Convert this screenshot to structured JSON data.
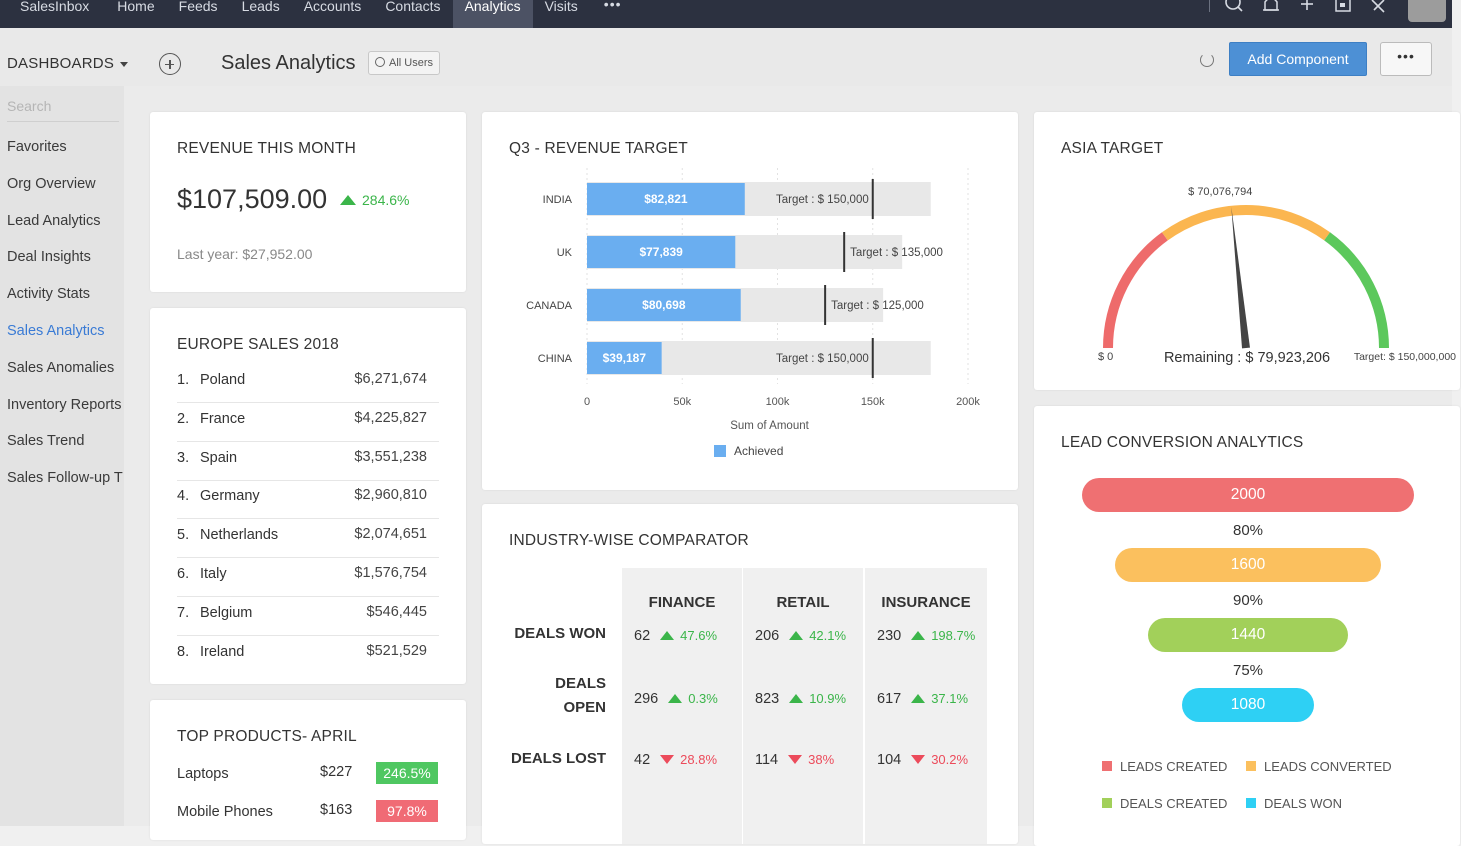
{
  "nav": {
    "brand": "SalesInbox",
    "items": [
      "Home",
      "Feeds",
      "Leads",
      "Accounts",
      "Contacts",
      "Analytics",
      "Visits"
    ],
    "active": "Analytics",
    "more": "•••"
  },
  "subheader": {
    "dashboards_label": "DASHBOARDS",
    "title": "Sales Analytics",
    "scope_label": "All Users",
    "add_component_label": "Add Component",
    "more_label": "•••"
  },
  "sidebar": {
    "search_placeholder": "Search",
    "items": [
      "Favorites",
      "Org Overview",
      "Lead Analytics",
      "Deal Insights",
      "Activity Stats",
      "Sales Analytics",
      "Sales Anomalies",
      "Inventory Reports",
      "Sales Trend",
      "Sales Follow-up T"
    ],
    "active_index": 5
  },
  "revenue": {
    "title": "REVENUE THIS MONTH",
    "value": "$107,509.00",
    "growth": "284.6%",
    "last_year": "Last year: $27,952.00"
  },
  "europe": {
    "title": "EUROPE SALES 2018",
    "rows": [
      {
        "rank": "1.",
        "country": "Poland",
        "value": "$6,271,674"
      },
      {
        "rank": "2.",
        "country": "France",
        "value": "$4,225,827"
      },
      {
        "rank": "3.",
        "country": "Spain",
        "value": "$3,551,238"
      },
      {
        "rank": "4.",
        "country": "Germany",
        "value": "$2,960,810"
      },
      {
        "rank": "5.",
        "country": "Netherlands",
        "value": "$2,074,651"
      },
      {
        "rank": "6.",
        "country": "Italy",
        "value": "$1,576,754"
      },
      {
        "rank": "7.",
        "country": "Belgium",
        "value": "$546,445"
      },
      {
        "rank": "8.",
        "country": "Ireland",
        "value": "$521,529"
      }
    ]
  },
  "products": {
    "title": "TOP PRODUCTS- APRIL",
    "rows": [
      {
        "name": "Laptops",
        "price": "$227",
        "change": "246.5%",
        "trend": "up"
      },
      {
        "name": "Mobile Phones",
        "price": "$163",
        "change": "97.8%",
        "trend": "down"
      }
    ]
  },
  "q3": {
    "title": "Q3 - REVENUE TARGET"
  },
  "chart_data": {
    "type": "bar",
    "orientation": "horizontal",
    "title": "Q3 - REVENUE TARGET",
    "categories": [
      "INDIA",
      "UK",
      "CANADA",
      "CHINA"
    ],
    "series": [
      {
        "name": "Achieved",
        "values": [
          82821,
          77839,
          80698,
          39187
        ],
        "labels": [
          "$82,821",
          "$77,839",
          "$80,698",
          "$39,187"
        ]
      }
    ],
    "targets": [
      150000,
      135000,
      125000,
      150000
    ],
    "target_labels": [
      "Target : $ 150,000",
      "Target : $ 135,000",
      "Target : $ 125,000",
      "Target : $ 150,000"
    ],
    "xlabel": "Sum of Amount",
    "xlim": [
      0,
      200000
    ],
    "xticks": [
      "0",
      "50k",
      "100k",
      "150k",
      "200k"
    ],
    "legend": "bottom",
    "colors": {
      "achieved": "#6aaef0",
      "remaining": "#e8e8e8"
    }
  },
  "industry": {
    "title": "INDUSTRY-WISE COMPARATOR",
    "columns": [
      "FINANCE",
      "RETAIL",
      "INSURANCE"
    ],
    "rows": [
      {
        "label": "DEALS WON",
        "cells": [
          {
            "value": "62",
            "pct": "47.6%",
            "trend": "up"
          },
          {
            "value": "206",
            "pct": "42.1%",
            "trend": "up"
          },
          {
            "value": "230",
            "pct": "198.7%",
            "trend": "up"
          }
        ]
      },
      {
        "label": "DEALS OPEN",
        "cells": [
          {
            "value": "296",
            "pct": "0.3%",
            "trend": "up"
          },
          {
            "value": "823",
            "pct": "10.9%",
            "trend": "up"
          },
          {
            "value": "617",
            "pct": "37.1%",
            "trend": "up"
          }
        ]
      },
      {
        "label": "DEALS LOST",
        "cells": [
          {
            "value": "42",
            "pct": "28.8%",
            "trend": "down"
          },
          {
            "value": "114",
            "pct": "38%",
            "trend": "down"
          },
          {
            "value": "104",
            "pct": "30.2%",
            "trend": "down"
          }
        ]
      }
    ]
  },
  "asia": {
    "title": "ASIA TARGET",
    "current_label": "$ 70,076,794",
    "min_label": "$ 0",
    "max_label": "Target: $ 150,000,000",
    "value_fraction": 0.467,
    "remaining": "Remaining : $ 79,923,206",
    "colors": {
      "low": "#ee6b6b",
      "mid": "#fbb650",
      "high": "#5cc85c"
    }
  },
  "leads": {
    "title": "LEAD CONVERSION ANALYTICS",
    "stages": [
      {
        "value": "2000",
        "color": "#ef7072"
      },
      {
        "value": "1600",
        "color": "#fbc05e"
      },
      {
        "value": "1440",
        "color": "#a2d05a"
      },
      {
        "value": "1080",
        "color": "#2ed0f4"
      }
    ],
    "rates": [
      "80%",
      "90%",
      "75%"
    ],
    "legend": [
      "LEADS CREATED",
      "LEADS CONVERTED",
      "DEALS CREATED",
      "DEALS WON"
    ]
  }
}
